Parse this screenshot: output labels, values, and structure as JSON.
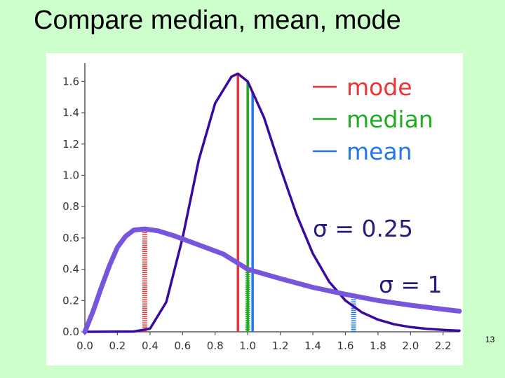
{
  "slide": {
    "title": "Compare median, mean, mode",
    "page_number": "13"
  },
  "chart_data": {
    "type": "line",
    "title": "",
    "xlabel": "",
    "ylabel": "",
    "xlim": [
      0.0,
      2.3
    ],
    "ylim": [
      0.0,
      1.7
    ],
    "x_ticks": [
      "0.0",
      "0.2",
      "0.4",
      "0.6",
      "0.8",
      "1.0",
      "1.2",
      "1.4",
      "1.6",
      "1.8",
      "2.0",
      "2.2"
    ],
    "y_ticks": [
      "0.0",
      "0.2",
      "0.4",
      "0.6",
      "0.8",
      "1.0",
      "1.2",
      "1.4",
      "1.6"
    ],
    "grid": false,
    "legend_position": "top-right",
    "legend": [
      {
        "label": "mode",
        "color": "#ee3333"
      },
      {
        "label": "median",
        "color": "#22aa22"
      },
      {
        "label": "mean",
        "color": "#2277ee"
      }
    ],
    "series": [
      {
        "name": "σ = 0.25",
        "style": "solid",
        "color": "#3a0aa0",
        "x": [
          0.02,
          0.3,
          0.4,
          0.5,
          0.6,
          0.7,
          0.8,
          0.9,
          0.94,
          1.0,
          1.1,
          1.2,
          1.3,
          1.4,
          1.5,
          1.6,
          1.7,
          1.8,
          1.9,
          2.0,
          2.1,
          2.2,
          2.3
        ],
        "y": [
          0.0,
          0.002,
          0.02,
          0.19,
          0.6,
          1.1,
          1.46,
          1.63,
          1.65,
          1.6,
          1.37,
          1.05,
          0.75,
          0.5,
          0.32,
          0.2,
          0.125,
          0.078,
          0.048,
          0.03,
          0.019,
          0.012,
          0.007
        ],
        "mode": 0.94,
        "median": 1.0,
        "mean": 1.03
      },
      {
        "name": "σ = 1",
        "style": "dashed",
        "color": "#7755dd",
        "x": [
          0.0,
          0.05,
          0.1,
          0.15,
          0.2,
          0.25,
          0.3,
          0.368,
          0.45,
          0.55,
          0.7,
          0.85,
          1.0,
          1.2,
          1.4,
          1.6,
          1.8,
          2.0,
          2.2,
          2.3
        ],
        "y": [
          0.0,
          0.13,
          0.28,
          0.42,
          0.54,
          0.61,
          0.65,
          0.657,
          0.645,
          0.613,
          0.555,
          0.497,
          0.4,
          0.34,
          0.284,
          0.24,
          0.2,
          0.17,
          0.144,
          0.132
        ],
        "mode": 0.368,
        "median": 1.0,
        "mean": 1.65
      }
    ],
    "annotations": [
      "σ = 0.25",
      "σ = 1"
    ]
  }
}
